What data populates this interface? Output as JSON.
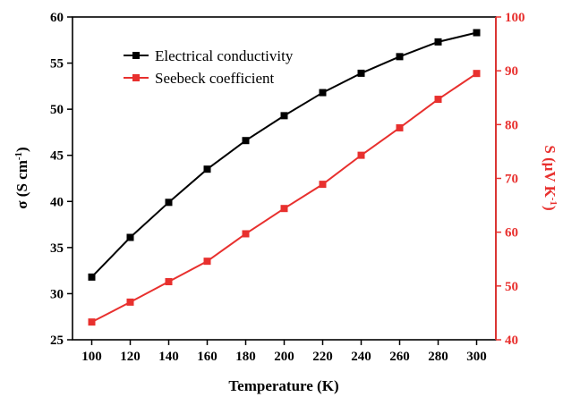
{
  "chart_data": {
    "type": "line",
    "x": [
      100,
      120,
      140,
      160,
      180,
      200,
      220,
      240,
      260,
      280,
      300
    ],
    "xlabel": "Temperature (K)",
    "xlim": [
      90,
      310
    ],
    "xticks": [
      "100",
      "120",
      "140",
      "160",
      "180",
      "200",
      "220",
      "240",
      "260",
      "280",
      "300"
    ],
    "ylabel_left": {
      "main": "σ (S cm",
      "sup": "-1",
      "close": ")"
    },
    "ylim_left": [
      25,
      60
    ],
    "yticks_left": [
      "25",
      "30",
      "35",
      "40",
      "45",
      "50",
      "55",
      "60"
    ],
    "ylabel_right": {
      "main": "S (μV K",
      "sup": "-1",
      "close": ")"
    },
    "ylim_right": [
      40,
      100
    ],
    "yticks_right": [
      "40",
      "50",
      "60",
      "70",
      "80",
      "90",
      "100"
    ],
    "legend_position": "top-left",
    "grid": false,
    "series": [
      {
        "name": "Electrical conductivity",
        "axis": "left",
        "color": "#000000",
        "marker": "square",
        "values": [
          31.8,
          36.1,
          39.9,
          43.5,
          46.6,
          49.3,
          51.8,
          53.9,
          55.7,
          57.3,
          58.3
        ]
      },
      {
        "name": "Seebeck coefficient",
        "axis": "right",
        "color": "#e8302e",
        "marker": "square",
        "values": [
          43.3,
          47.0,
          50.8,
          54.6,
          59.7,
          64.4,
          68.9,
          74.3,
          79.4,
          84.7,
          89.5
        ]
      }
    ]
  }
}
